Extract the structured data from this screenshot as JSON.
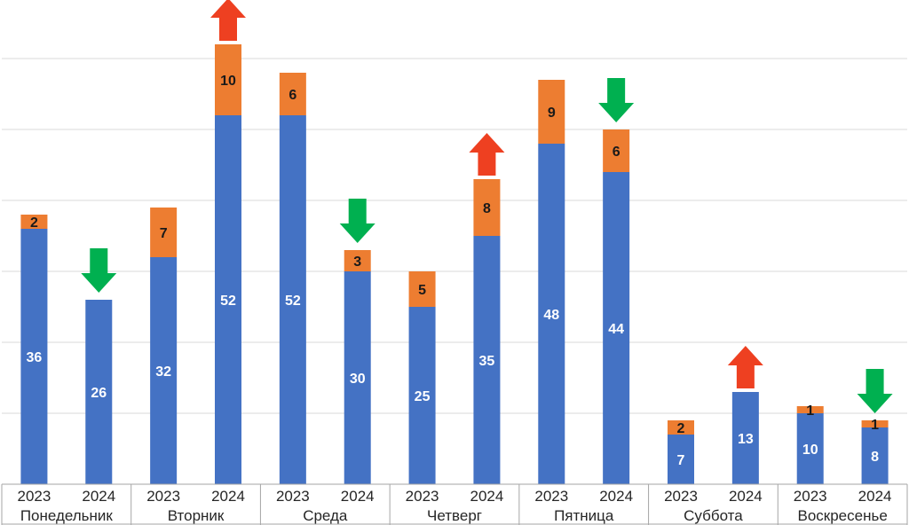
{
  "chart_data": {
    "type": "bar",
    "stacked": true,
    "title": "",
    "xlabel": "",
    "ylabel": "",
    "ylim": [
      0,
      68
    ],
    "grid": true,
    "legend": "none",
    "groups": [
      "Понедельник",
      "Вторник",
      "Среда",
      "Четверг",
      "Пятница",
      "Суббота",
      "Воскресенье"
    ],
    "years": [
      "2023",
      "2024"
    ],
    "series": [
      {
        "color": "#4472c4",
        "values": [
          36,
          26,
          32,
          52,
          52,
          30,
          25,
          35,
          48,
          44,
          7,
          13,
          10,
          8
        ]
      },
      {
        "color": "#ed7d31",
        "values": [
          2,
          null,
          7,
          10,
          6,
          3,
          5,
          8,
          9,
          6,
          2,
          null,
          1,
          1
        ]
      }
    ],
    "arrows": [
      {
        "bar": 1,
        "direction": "down",
        "color": "#00b050"
      },
      {
        "bar": 3,
        "direction": "up",
        "color": "#ee4021"
      },
      {
        "bar": 5,
        "direction": "down",
        "color": "#00b050"
      },
      {
        "bar": 7,
        "direction": "up",
        "color": "#ee4021"
      },
      {
        "bar": 9,
        "direction": "down",
        "color": "#00b050"
      },
      {
        "bar": 11,
        "direction": "up",
        "color": "#ee4021"
      },
      {
        "bar": 13,
        "direction": "down",
        "color": "#00b050"
      }
    ]
  }
}
